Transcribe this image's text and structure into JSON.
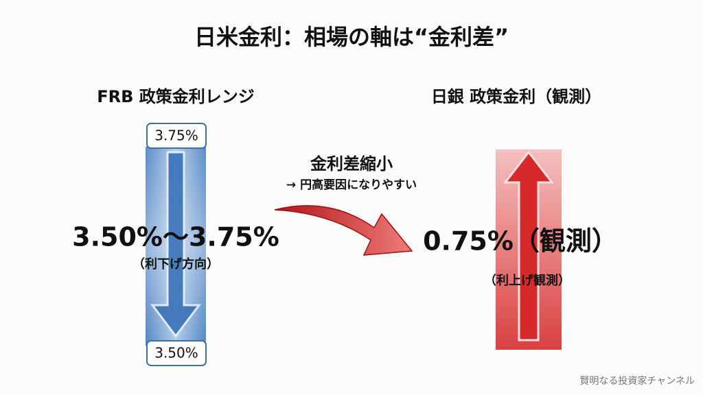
{
  "title": "日米金利：相場の軸は“金利差”",
  "left": {
    "heading": "FRB 政策金利レンジ",
    "top_label": "3.75%",
    "bottom_label": "3.50%",
    "main": "3.50%〜3.75%",
    "sub": "（利下げ方向）"
  },
  "middle": {
    "heading": "金利差縮小",
    "sub": "→ 円高要因になりやすい"
  },
  "right": {
    "heading": "日銀 政策金利（観測）",
    "main": "0.75%（観測）",
    "sub": "（利上げ観測）"
  },
  "footer": "賢明なる投資家チャンネル"
}
